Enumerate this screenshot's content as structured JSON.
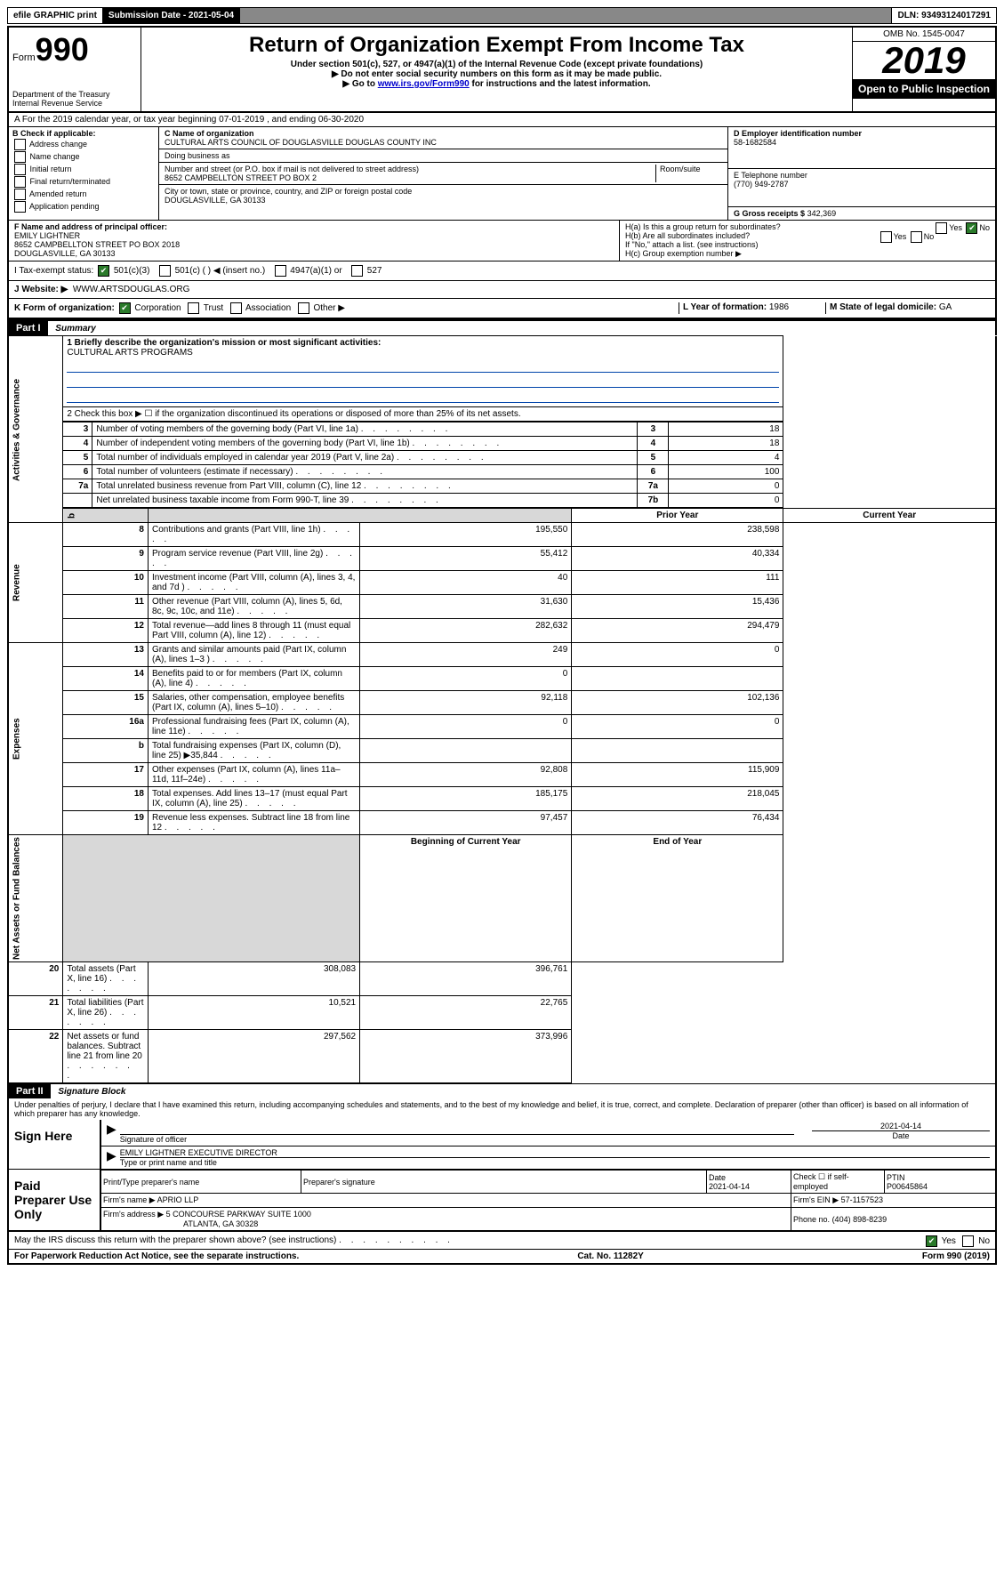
{
  "top_bar": {
    "efile": "efile GRAPHIC print",
    "submission_label": "Submission Date - 2021-05-04",
    "dln": "DLN: 93493124017291"
  },
  "header": {
    "form_word": "Form",
    "form_num": "990",
    "dept": "Department of the Treasury",
    "irs": "Internal Revenue Service",
    "title": "Return of Organization Exempt From Income Tax",
    "subtitle1": "Under section 501(c), 527, or 4947(a)(1) of the Internal Revenue Code (except private foundations)",
    "subtitle2": "▶ Do not enter social security numbers on this form as it may be made public.",
    "subtitle3_pre": "▶ Go to ",
    "subtitle3_link": "www.irs.gov/Form990",
    "subtitle3_post": " for instructions and the latest information.",
    "omb": "OMB No. 1545-0047",
    "year": "2019",
    "open": "Open to Public Inspection"
  },
  "line_a": "A For the 2019 calendar year, or tax year beginning 07-01-2019     , and ending 06-30-2020",
  "section_b": {
    "title": "B Check if applicable:",
    "items": [
      "Address change",
      "Name change",
      "Initial return",
      "Final return/terminated",
      "Amended return",
      "Application pending"
    ]
  },
  "section_c": {
    "name_label": "C Name of organization",
    "name": "CULTURAL ARTS COUNCIL OF DOUGLASVILLE DOUGLAS COUNTY INC",
    "dba_label": "Doing business as",
    "addr_label": "Number and street (or P.O. box if mail is not delivered to street address)",
    "room_label": "Room/suite",
    "addr": "8652 CAMPBELLTON STREET PO BOX 2",
    "city_label": "City or town, state or province, country, and ZIP or foreign postal code",
    "city": "DOUGLASVILLE, GA  30133"
  },
  "section_d": {
    "label": "D Employer identification number",
    "value": "58-1682584"
  },
  "section_e": {
    "label": "E Telephone number",
    "value": "(770) 949-2787"
  },
  "section_g": {
    "label": "G Gross receipts $",
    "value": "342,369"
  },
  "section_f": {
    "label": "F  Name and address of principal officer:",
    "name": "EMILY LIGHTNER",
    "addr1": "8652 CAMPBELLTON STREET PO BOX 2018",
    "addr2": "DOUGLASVILLE, GA  30133"
  },
  "section_h": {
    "a": "H(a)  Is this a group return for subordinates?",
    "b": "H(b)  Are all subordinates included?",
    "b_note": "If \"No,\" attach a list. (see instructions)",
    "c": "H(c)  Group exemption number ▶",
    "yes": "Yes",
    "no": "No"
  },
  "line_i": {
    "label": "I    Tax-exempt status:",
    "opts": [
      "501(c)(3)",
      "501(c) (   ) ◀ (insert no.)",
      "4947(a)(1) or",
      "527"
    ]
  },
  "line_j": {
    "label": "J    Website: ▶",
    "value": "WWW.ARTSDOUGLAS.ORG"
  },
  "line_k": {
    "label": "K Form of organization:",
    "opts": [
      "Corporation",
      "Trust",
      "Association",
      "Other ▶"
    ],
    "l_label": "L Year of formation:",
    "l_value": "1986",
    "m_label": "M State of legal domicile:",
    "m_value": "GA"
  },
  "part1": {
    "tag": "Part I",
    "title": "Summary"
  },
  "summary": {
    "line1_label": "1  Briefly describe the organization's mission or most significant activities:",
    "line1_value": "CULTURAL ARTS PROGRAMS",
    "line2": "2   Check this box ▶ ☐  if the organization discontinued its operations or disposed of more than 25% of its net assets.",
    "rows_num": [
      {
        "n": "3",
        "label": "Number of voting members of the governing body (Part VI, line 1a)",
        "box": "3",
        "val": "18"
      },
      {
        "n": "4",
        "label": "Number of independent voting members of the governing body (Part VI, line 1b)",
        "box": "4",
        "val": "18"
      },
      {
        "n": "5",
        "label": "Total number of individuals employed in calendar year 2019 (Part V, line 2a)",
        "box": "5",
        "val": "4"
      },
      {
        "n": "6",
        "label": "Total number of volunteers (estimate if necessary)",
        "box": "6",
        "val": "100"
      },
      {
        "n": "7a",
        "label": "Total unrelated business revenue from Part VIII, column (C), line 12",
        "box": "7a",
        "val": "0"
      },
      {
        "n": "",
        "label": "Net unrelated business taxable income from Form 990-T, line 39",
        "box": "7b",
        "val": "0"
      }
    ],
    "col_headers": {
      "b": "b",
      "prior": "Prior Year",
      "current": "Current Year"
    },
    "revenue": [
      {
        "n": "8",
        "label": "Contributions and grants (Part VIII, line 1h)",
        "p": "195,550",
        "c": "238,598"
      },
      {
        "n": "9",
        "label": "Program service revenue (Part VIII, line 2g)",
        "p": "55,412",
        "c": "40,334"
      },
      {
        "n": "10",
        "label": "Investment income (Part VIII, column (A), lines 3, 4, and 7d )",
        "p": "40",
        "c": "111"
      },
      {
        "n": "11",
        "label": "Other revenue (Part VIII, column (A), lines 5, 6d, 8c, 9c, 10c, and 11e)",
        "p": "31,630",
        "c": "15,436"
      },
      {
        "n": "12",
        "label": "Total revenue—add lines 8 through 11 (must equal Part VIII, column (A), line 12)",
        "p": "282,632",
        "c": "294,479"
      }
    ],
    "expenses": [
      {
        "n": "13",
        "label": "Grants and similar amounts paid (Part IX, column (A), lines 1–3 )",
        "p": "249",
        "c": "0"
      },
      {
        "n": "14",
        "label": "Benefits paid to or for members (Part IX, column (A), line 4)",
        "p": "0",
        "c": ""
      },
      {
        "n": "15",
        "label": "Salaries, other compensation, employee benefits (Part IX, column (A), lines 5–10)",
        "p": "92,118",
        "c": "102,136"
      },
      {
        "n": "16a",
        "label": "Professional fundraising fees (Part IX, column (A), line 11e)",
        "p": "0",
        "c": "0"
      },
      {
        "n": "b",
        "label": "Total fundraising expenses (Part IX, column (D), line 25) ▶35,844",
        "p": "",
        "c": "",
        "shaded": true
      },
      {
        "n": "17",
        "label": "Other expenses (Part IX, column (A), lines 11a–11d, 11f–24e)",
        "p": "92,808",
        "c": "115,909"
      },
      {
        "n": "18",
        "label": "Total expenses. Add lines 13–17 (must equal Part IX, column (A), line 25)",
        "p": "185,175",
        "c": "218,045"
      },
      {
        "n": "19",
        "label": "Revenue less expenses. Subtract line 18 from line 12",
        "p": "97,457",
        "c": "76,434"
      }
    ],
    "net_headers": {
      "begin": "Beginning of Current Year",
      "end": "End of Year"
    },
    "net": [
      {
        "n": "20",
        "label": "Total assets (Part X, line 16)",
        "p": "308,083",
        "c": "396,761"
      },
      {
        "n": "21",
        "label": "Total liabilities (Part X, line 26)",
        "p": "10,521",
        "c": "22,765"
      },
      {
        "n": "22",
        "label": "Net assets or fund balances. Subtract line 21 from line 20",
        "p": "297,562",
        "c": "373,996"
      }
    ],
    "side_labels": {
      "gov": "Activities & Governance",
      "rev": "Revenue",
      "exp": "Expenses",
      "net": "Net Assets or Fund Balances"
    }
  },
  "part2": {
    "tag": "Part II",
    "title": "Signature Block"
  },
  "perjury": "Under penalties of perjury, I declare that I have examined this return, including accompanying schedules and statements, and to the best of my knowledge and belief, it is true, correct, and complete. Declaration of preparer (other than officer) is based on all information of which preparer has any knowledge.",
  "sign": {
    "left": "Sign Here",
    "sig_officer": "Signature of officer",
    "date": "2021-04-14",
    "date_label": "Date",
    "name": "EMILY LIGHTNER  EXECUTIVE DIRECTOR",
    "name_label": "Type or print name and title"
  },
  "paid": {
    "left": "Paid Preparer Use Only",
    "h1": "Print/Type preparer's name",
    "h2": "Preparer's signature",
    "h3_label": "Date",
    "h3": "2021-04-14",
    "h4": "Check ☐ if self-employed",
    "h5_label": "PTIN",
    "h5": "P00645864",
    "firm_name_label": "Firm's name     ▶",
    "firm_name": "APRIO LLP",
    "firm_ein_label": "Firm's EIN ▶",
    "firm_ein": "57-1157523",
    "firm_addr_label": "Firm's address ▶",
    "firm_addr1": "5 CONCOURSE PARKWAY SUITE 1000",
    "firm_addr2": "ATLANTA, GA  30328",
    "phone_label": "Phone no.",
    "phone": "(404) 898-8239"
  },
  "discuss": "May the IRS discuss this return with the preparer shown above? (see instructions)",
  "footer": {
    "left": "For Paperwork Reduction Act Notice, see the separate instructions.",
    "center": "Cat. No. 11282Y",
    "right": "Form 990 (2019)"
  }
}
